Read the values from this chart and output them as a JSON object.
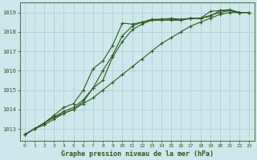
{
  "title": "Graphe pression niveau de la mer (hPa)",
  "bg_color": "#cde8ec",
  "grid_color": "#b0cfd4",
  "line_color": "#2d5a1b",
  "xlim": [
    -0.5,
    23.5
  ],
  "ylim": [
    1012.4,
    1019.5
  ],
  "yticks": [
    1013,
    1014,
    1015,
    1016,
    1017,
    1018,
    1019
  ],
  "xticks": [
    0,
    1,
    2,
    3,
    4,
    5,
    6,
    7,
    8,
    9,
    10,
    11,
    12,
    13,
    14,
    15,
    16,
    17,
    18,
    19,
    20,
    21,
    22,
    23
  ],
  "series": [
    [
      1012.7,
      1013.0,
      1013.3,
      1013.6,
      1013.8,
      1014.0,
      1014.4,
      1015.1,
      1015.5,
      1016.7,
      1017.5,
      1018.1,
      1018.4,
      1018.6,
      1018.6,
      1018.6,
      1018.6,
      1018.7,
      1018.7,
      1018.8,
      1019.1,
      1019.1,
      1019.0,
      1019.0
    ],
    [
      1012.7,
      1013.0,
      1013.3,
      1013.6,
      1013.9,
      1014.1,
      1014.5,
      1015.1,
      1016.0,
      1016.8,
      1017.8,
      1018.3,
      1018.5,
      1018.6,
      1018.65,
      1018.65,
      1018.6,
      1018.7,
      1018.7,
      1018.85,
      1019.0,
      1019.1,
      1019.0,
      1019.0
    ],
    [
      1012.7,
      1013.0,
      1013.3,
      1013.7,
      1014.1,
      1014.3,
      1015.0,
      1016.1,
      1016.5,
      1017.3,
      1018.45,
      1018.4,
      1018.5,
      1018.65,
      1018.65,
      1018.7,
      1018.65,
      1018.7,
      1018.7,
      1019.05,
      1019.1,
      1019.15,
      1019.0,
      1019.0
    ],
    [
      1012.7,
      1013.0,
      1013.2,
      1013.5,
      1013.8,
      1014.0,
      1014.3,
      1014.6,
      1015.0,
      1015.4,
      1015.8,
      1016.2,
      1016.6,
      1017.0,
      1017.4,
      1017.7,
      1018.0,
      1018.3,
      1018.5,
      1018.7,
      1018.9,
      1019.0,
      1019.0,
      1019.0
    ]
  ]
}
